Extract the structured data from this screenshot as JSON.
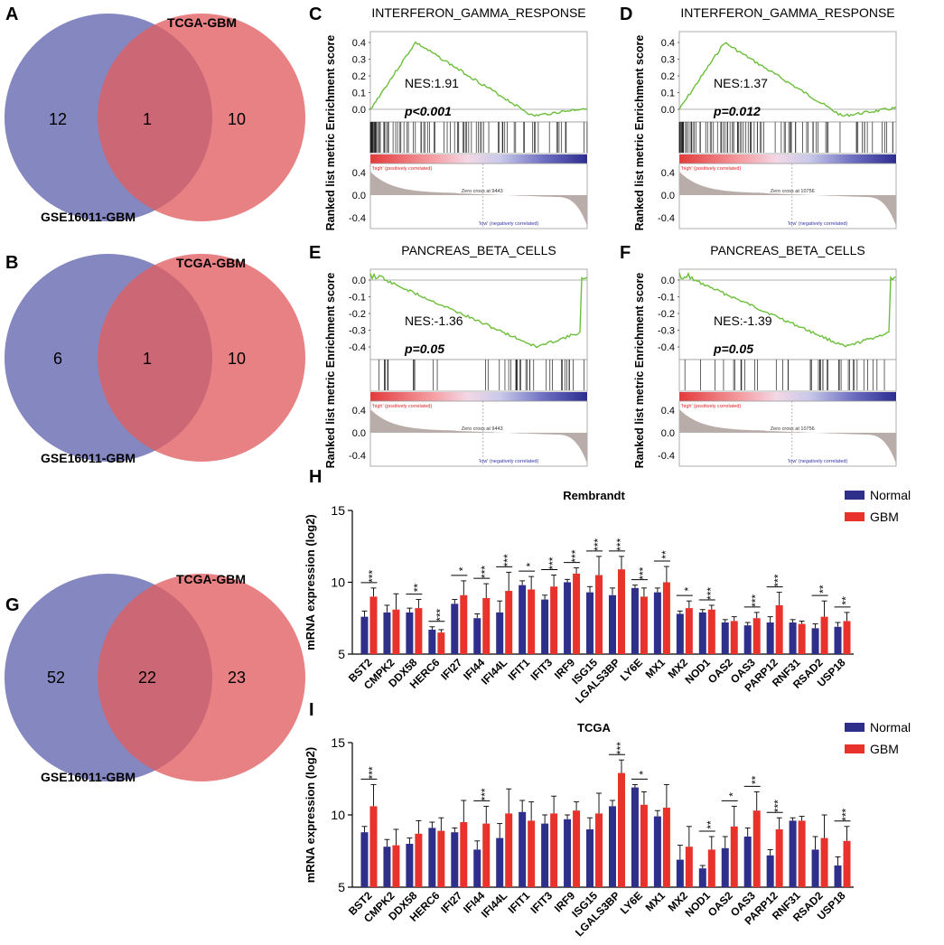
{
  "panel_letters": {
    "a": "A",
    "b": "B",
    "c": "C",
    "d": "D",
    "e": "E",
    "f": "F",
    "g": "G",
    "h": "H",
    "i": "I"
  },
  "venn": [
    {
      "top": "TCGA-GBM",
      "bottom": "GSE16011-GBM",
      "left": "12",
      "mid": "1",
      "right": "10"
    },
    {
      "top": "TCGA-GBM",
      "bottom": "GSE16011-GBM",
      "left": "6",
      "mid": "1",
      "right": "10"
    },
    {
      "top": "TCGA-GBM",
      "bottom": "GSE16011-GBM",
      "left": "52",
      "mid": "22",
      "right": "23"
    }
  ],
  "gsea": [
    {
      "title": "INTERFERON_GAMMA_RESPONSE",
      "nes": "NES:1.91",
      "p": "p<0.001",
      "zero": "Zero cross at 9443",
      "kind": "pos",
      "seed": 3
    },
    {
      "title": "INTERFERON_GAMMA_RESPONSE",
      "nes": "NES:1.37",
      "p": "p=0.012",
      "zero": "Zero cross at 10756",
      "kind": "pos",
      "seed": 7
    },
    {
      "title": "PANCREAS_BETA_CELLS",
      "nes": "NES:-1.36",
      "p": "p=0.05",
      "zero": "Zero cross at 9443",
      "kind": "neg",
      "seed": 11
    },
    {
      "title": "PANCREAS_BETA_CELLS",
      "nes": "NES:-1.39",
      "p": "p=0.05",
      "zero": "Zero cross at 10756",
      "kind": "neg",
      "seed": 17
    }
  ],
  "gsea_axis": {
    "pos_ticks": [
      "0.4",
      "0.3",
      "0.2",
      "0.1",
      "0.0"
    ],
    "neg_ticks": [
      "0.0",
      "-0.1",
      "-0.2",
      "-0.3",
      "-0.4"
    ],
    "metric_ticks": [
      "0.4",
      "0.0",
      "-0.4"
    ],
    "ylabel": "Ranked list metric Enrichment score",
    "high_label": "'high' (positively correlated)",
    "low_label": "'low' (negatively correlated)"
  },
  "chart_data": [
    {
      "type": "bar",
      "title": "Rembrandt",
      "ylabel": "mRNA expression (log2)",
      "ylim": [
        5,
        15
      ],
      "yticks": [
        "15",
        "10",
        "5"
      ],
      "categories": [
        "BST2",
        "CMPK2",
        "DDX58",
        "HERC6",
        "IFI27",
        "IFI44",
        "IFI44L",
        "IFIT1",
        "IFIT3",
        "IRF9",
        "ISG15",
        "LGALS3BP",
        "LY6E",
        "MX1",
        "MX2",
        "NOD1",
        "OAS2",
        "OAS3",
        "PARP12",
        "RNF31",
        "RSAD2",
        "USP18"
      ],
      "series": [
        {
          "name": "Normal",
          "color": "#2e2f8a",
          "values": [
            7.6,
            7.9,
            7.9,
            6.7,
            8.5,
            7.5,
            7.9,
            9.8,
            8.8,
            10.0,
            9.3,
            9.1,
            9.6,
            9.3,
            7.8,
            7.9,
            7.2,
            7.0,
            7.2,
            7.2,
            6.8,
            6.9
          ]
        },
        {
          "name": "GBM",
          "color": "#e8322b",
          "values": [
            9.0,
            8.1,
            8.2,
            6.5,
            9.1,
            8.9,
            9.4,
            9.5,
            9.7,
            10.6,
            10.5,
            10.9,
            9.0,
            10.0,
            8.2,
            8.1,
            7.3,
            7.5,
            8.4,
            7.1,
            7.6,
            7.3
          ]
        }
      ],
      "errors": [
        [
          0.4,
          0.6
        ],
        [
          0.5,
          1.1
        ],
        [
          0.3,
          0.6
        ],
        [
          0.2,
          0.2
        ],
        [
          0.3,
          1.0
        ],
        [
          0.3,
          1.0
        ],
        [
          0.8,
          1.3
        ],
        [
          0.3,
          0.9
        ],
        [
          0.3,
          0.8
        ],
        [
          0.2,
          0.4
        ],
        [
          0.4,
          1.3
        ],
        [
          0.5,
          0.9
        ],
        [
          0.2,
          0.6
        ],
        [
          0.3,
          1.1
        ],
        [
          0.2,
          0.5
        ],
        [
          0.2,
          0.3
        ],
        [
          0.2,
          0.3
        ],
        [
          0.2,
          0.4
        ],
        [
          0.4,
          0.9
        ],
        [
          0.2,
          0.2
        ],
        [
          0.3,
          1.1
        ],
        [
          0.3,
          0.6
        ]
      ],
      "significance": [
        "***",
        "",
        "**",
        "***",
        "*",
        "***",
        "***",
        "*",
        "***",
        "***",
        "***",
        "***",
        "***",
        "**",
        "*",
        "***",
        "",
        "***",
        "***",
        "",
        "**",
        "**"
      ]
    },
    {
      "type": "bar",
      "title": "TCGA",
      "ylabel": "mRNA expression (log2)",
      "ylim": [
        5,
        15
      ],
      "yticks": [
        "15",
        "10",
        "5"
      ],
      "categories": [
        "BST2",
        "CMPK2",
        "DDX58",
        "HERC6",
        "IFI27",
        "IFI44",
        "IFI44L",
        "IFIT1",
        "IFIT3",
        "IRF9",
        "ISG15",
        "LGALS3BP",
        "LY6E",
        "MX1",
        "MX2",
        "NOD1",
        "OAS2",
        "OAS3",
        "PARP12",
        "RNF31",
        "RSAD2",
        "USP18"
      ],
      "series": [
        {
          "name": "Normal",
          "color": "#2e2f8a",
          "values": [
            8.8,
            7.8,
            8.0,
            9.1,
            8.8,
            7.6,
            8.4,
            10.2,
            9.4,
            9.7,
            9.0,
            10.6,
            11.9,
            9.9,
            6.9,
            6.3,
            7.7,
            8.5,
            7.2,
            9.6,
            7.6,
            6.5
          ]
        },
        {
          "name": "GBM",
          "color": "#e8322b",
          "values": [
            10.6,
            7.9,
            8.7,
            8.9,
            9.5,
            9.4,
            10.1,
            9.6,
            10.1,
            10.3,
            10.1,
            12.9,
            10.7,
            10.5,
            7.8,
            7.6,
            9.2,
            10.3,
            9.0,
            9.6,
            8.4,
            8.2
          ]
        }
      ],
      "errors": [
        [
          0.4,
          1.5
        ],
        [
          0.5,
          1.1
        ],
        [
          0.4,
          0.9
        ],
        [
          0.4,
          0.9
        ],
        [
          0.3,
          1.5
        ],
        [
          0.6,
          1.2
        ],
        [
          1.0,
          1.7
        ],
        [
          0.8,
          1.3
        ],
        [
          0.6,
          1.2
        ],
        [
          0.3,
          0.6
        ],
        [
          0.8,
          1.4
        ],
        [
          0.4,
          0.9
        ],
        [
          0.2,
          0.9
        ],
        [
          0.4,
          1.6
        ],
        [
          1.0,
          1.4
        ],
        [
          0.2,
          0.9
        ],
        [
          0.8,
          1.4
        ],
        [
          0.6,
          1.3
        ],
        [
          0.4,
          0.8
        ],
        [
          0.2,
          0.3
        ],
        [
          0.9,
          1.6
        ],
        [
          0.6,
          1.0
        ]
      ],
      "significance": [
        "***",
        "",
        "",
        "",
        "",
        "***",
        "",
        "",
        "",
        "",
        "",
        "***",
        "*",
        "",
        "",
        "**",
        "*",
        "**",
        "***",
        "",
        "",
        "***"
      ]
    }
  ]
}
